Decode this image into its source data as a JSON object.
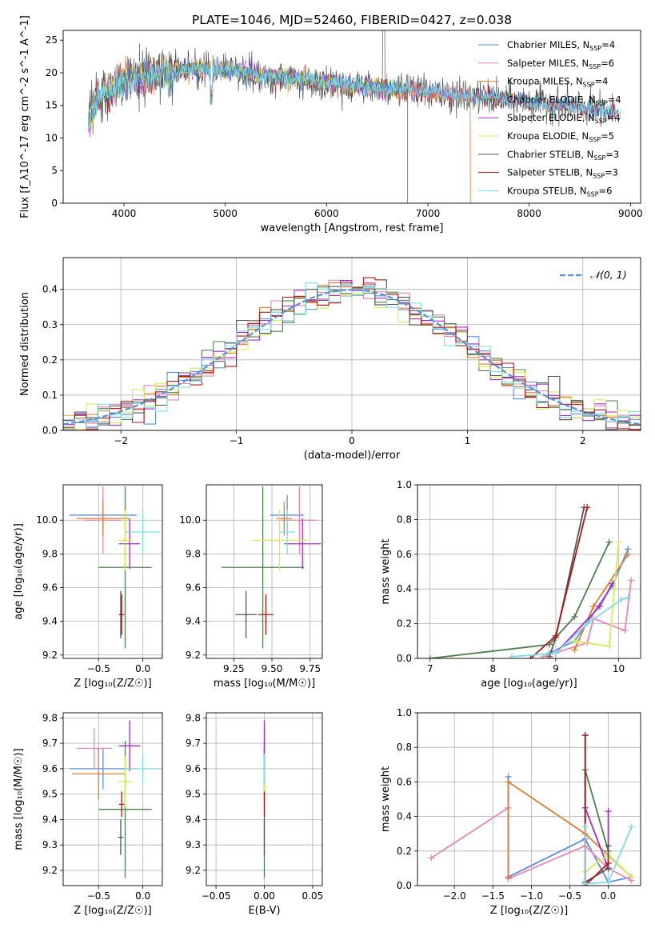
{
  "figure": {
    "title": "PLATE=1046, MJD=52460, FIBERID=0427, z=0.038"
  },
  "colors": {
    "chabrier_miles": "#5b8ee0",
    "salpeter_miles": "#e887b3",
    "kroupa_miles": "#e07b2a",
    "chabrier_elodie": "#4f7f4f",
    "salpeter_elodie": "#a52bc9",
    "kroupa_elodie": "#d4ec5a",
    "chabrier_stelib": "#555555",
    "salpeter_stelib": "#b01818",
    "kroupa_stelib": "#7fdde6",
    "normal": "#5a8fd8",
    "grid": "#b0b0b0"
  },
  "chart_data": [
    {
      "id": "spectrum",
      "type": "line",
      "xlabel": "wavelength [Angstrom, rest frame]",
      "ylabel": "Flux [f_λ10^-17 erg cm^-2 s^-1 A^-1]",
      "xlim": [
        3400,
        9100
      ],
      "ylim": [
        0,
        26.5
      ],
      "xticks": [
        4000,
        5000,
        6000,
        7000,
        8000,
        9000
      ],
      "yticks": [
        0,
        5,
        10,
        15,
        20,
        25
      ],
      "legend_position": "upper-right",
      "continuum": {
        "x": [
          3650,
          3700,
          3800,
          3900,
          4000,
          4100,
          4200,
          4400,
          4600,
          4800,
          5000,
          5200,
          5400,
          5600,
          5800,
          6000,
          6200,
          6400,
          6600,
          6800,
          7000,
          7200,
          7400,
          7600,
          7800,
          8000,
          8200,
          8400,
          8600,
          8800
        ],
        "y": [
          13,
          15,
          17,
          17.5,
          19,
          19.5,
          19,
          20,
          20.5,
          20.7,
          20.5,
          20,
          19.5,
          19.2,
          18.8,
          18.6,
          18.2,
          17.8,
          17.6,
          17.3,
          17,
          16.6,
          16.3,
          16.2,
          15.8,
          15.5,
          15.2,
          15.0,
          14.5,
          14.0
        ]
      },
      "series": [
        {
          "name": "Chabrier MILES",
          "nssp": 4,
          "x_end": 8900,
          "color_key": "chabrier_miles"
        },
        {
          "name": "Salpeter MILES",
          "nssp": 6,
          "x_end": 7420,
          "color_key": "salpeter_miles"
        },
        {
          "name": "Kroupa MILES",
          "nssp": 4,
          "x_end": 7420,
          "color_key": "kroupa_miles"
        },
        {
          "name": "Chabrier ELODIE",
          "nssp": 4,
          "x_end": 6800,
          "color_key": "chabrier_elodie"
        },
        {
          "name": "Salpeter ELODIE",
          "nssp": 4,
          "x_end": 6800,
          "color_key": "salpeter_elodie"
        },
        {
          "name": "Kroupa ELODIE",
          "nssp": 5,
          "x_end": 6800,
          "color_key": "kroupa_elodie"
        },
        {
          "name": "Chabrier STELIB",
          "nssp": 3,
          "x_end": 8850,
          "color_key": "chabrier_stelib"
        },
        {
          "name": "Salpeter STELIB",
          "nssp": 3,
          "x_end": 8850,
          "color_key": "salpeter_stelib"
        },
        {
          "name": "Kroupa STELIB",
          "nssp": 6,
          "x_end": 8850,
          "color_key": "kroupa_stelib"
        }
      ]
    },
    {
      "id": "residuals",
      "type": "histogram",
      "xlabel": "(data-model)/error",
      "ylabel": "Normed distribution",
      "xlim": [
        -2.5,
        2.5
      ],
      "ylim": [
        0,
        0.49
      ],
      "xticks": [
        -2,
        -1,
        0,
        1,
        2
      ],
      "yticks": [
        0.0,
        0.1,
        0.2,
        0.3,
        0.4
      ],
      "bin_width": 0.1,
      "legend": "𝒩(0, 1)",
      "legend_position": "upper-right"
    },
    {
      "id": "age_vs_z",
      "type": "errorbar",
      "xlabel": "Z [log₁₀(Z/Z☉)]",
      "ylabel": "age  [log₁₀(age/yr)]",
      "xlim": [
        -0.9,
        0.22
      ],
      "ylim": [
        9.18,
        10.21
      ],
      "xticks": [
        -0.5,
        0.0
      ],
      "yticks": [
        9.2,
        9.4,
        9.6,
        9.8,
        10.0
      ],
      "points": [
        {
          "x": -0.45,
          "y": 10.03,
          "xerr": 0.38,
          "yerr": 0.12,
          "color_key": "chabrier_miles"
        },
        {
          "x": -0.45,
          "y": 10.0,
          "xerr": 0.2,
          "yerr": 0.2,
          "color_key": "salpeter_miles"
        },
        {
          "x": -0.45,
          "y": 10.01,
          "xerr": 0.3,
          "yerr": 0.1,
          "color_key": "kroupa_miles"
        },
        {
          "x": -0.2,
          "y": 9.72,
          "xerr": 0.3,
          "yerr": 0.48,
          "color_key": "chabrier_elodie"
        },
        {
          "x": -0.15,
          "y": 9.86,
          "xerr": 0.12,
          "yerr": 0.15,
          "color_key": "salpeter_elodie"
        },
        {
          "x": -0.2,
          "y": 9.88,
          "xerr": 0.08,
          "yerr": 0.18,
          "color_key": "kroupa_elodie"
        },
        {
          "x": -0.25,
          "y": 9.44,
          "xerr": 0.02,
          "yerr": 0.14,
          "color_key": "chabrier_stelib"
        },
        {
          "x": -0.24,
          "y": 9.44,
          "xerr": 0.03,
          "yerr": 0.12,
          "color_key": "salpeter_stelib"
        },
        {
          "x": 0.0,
          "y": 9.93,
          "xerr": 0.2,
          "yerr": 0.13,
          "color_key": "kroupa_stelib"
        }
      ]
    },
    {
      "id": "age_vs_mass",
      "type": "errorbar",
      "xlabel": "mass [log₁₀(M/M☉)]",
      "ylabel": "",
      "xlim": [
        9.07,
        9.83
      ],
      "ylim": [
        9.18,
        10.21
      ],
      "xticks": [
        9.25,
        9.5,
        9.75
      ],
      "yticks": [
        9.2,
        9.4,
        9.6,
        9.8,
        10.0
      ],
      "points": [
        {
          "x": 9.6,
          "y": 10.03,
          "xerr": 0.11,
          "yerr": 0.12,
          "color_key": "chabrier_miles"
        },
        {
          "x": 9.68,
          "y": 10.0,
          "xerr": 0.12,
          "yerr": 0.2,
          "color_key": "salpeter_miles"
        },
        {
          "x": 9.58,
          "y": 10.01,
          "xerr": 0.05,
          "yerr": 0.1,
          "color_key": "kroupa_miles"
        },
        {
          "x": 9.44,
          "y": 9.72,
          "xerr": 0.27,
          "yerr": 0.48,
          "color_key": "chabrier_elodie"
        },
        {
          "x": 9.7,
          "y": 9.86,
          "xerr": 0.12,
          "yerr": 0.15,
          "color_key": "salpeter_elodie"
        },
        {
          "x": 9.55,
          "y": 9.88,
          "xerr": 0.18,
          "yerr": 0.18,
          "color_key": "kroupa_elodie"
        },
        {
          "x": 9.33,
          "y": 9.44,
          "xerr": 0.07,
          "yerr": 0.14,
          "color_key": "chabrier_stelib"
        },
        {
          "x": 9.46,
          "y": 9.44,
          "xerr": 0.05,
          "yerr": 0.12,
          "color_key": "salpeter_stelib"
        },
        {
          "x": 9.6,
          "y": 9.93,
          "xerr": 0.05,
          "yerr": 0.13,
          "color_key": "kroupa_stelib"
        }
      ]
    },
    {
      "id": "massweight_vs_age",
      "type": "line",
      "xlabel": "age  [log₁₀(age/yr)]",
      "ylabel": "mass weight",
      "xlim": [
        6.8,
        10.35
      ],
      "ylim": [
        0,
        1.0
      ],
      "xticks": [
        7,
        8,
        9,
        10
      ],
      "yticks": [
        0.0,
        0.2,
        0.4,
        0.6,
        0.8,
        1.0
      ],
      "series": [
        {
          "color_key": "chabrier_miles",
          "x": [
            8.9,
            9.3,
            9.9,
            10.15
          ],
          "y": [
            0.03,
            0.1,
            0.42,
            0.63
          ]
        },
        {
          "color_key": "salpeter_miles",
          "x": [
            8.8,
            9.5,
            9.6,
            10.1,
            10.2
          ],
          "y": [
            0.01,
            0.09,
            0.23,
            0.16,
            0.45
          ]
        },
        {
          "color_key": "kroupa_miles",
          "x": [
            9.3,
            9.6,
            10.15
          ],
          "y": [
            0.05,
            0.3,
            0.6
          ]
        },
        {
          "color_key": "chabrier_elodie",
          "x": [
            7.0,
            8.9,
            9.3,
            9.85
          ],
          "y": [
            0.0,
            0.08,
            0.24,
            0.67
          ]
        },
        {
          "color_key": "salpeter_elodie",
          "x": [
            9.0,
            9.7,
            9.9
          ],
          "y": [
            0.03,
            0.3,
            0.43
          ]
        },
        {
          "color_key": "kroupa_elodie",
          "x": [
            9.3,
            9.85,
            10.0
          ],
          "y": [
            0.1,
            0.07,
            0.67
          ]
        },
        {
          "color_key": "chabrier_stelib",
          "x": [
            8.9,
            9.0,
            9.45
          ],
          "y": [
            0.01,
            0.12,
            0.87
          ]
        },
        {
          "color_key": "salpeter_stelib",
          "x": [
            8.6,
            9.0,
            9.5
          ],
          "y": [
            0.0,
            0.13,
            0.87
          ]
        },
        {
          "color_key": "kroupa_stelib",
          "x": [
            8.3,
            9.0,
            9.5,
            10.05,
            10.15
          ],
          "y": [
            0.01,
            0.03,
            0.2,
            0.34,
            0.35
          ]
        }
      ]
    },
    {
      "id": "mass_vs_z",
      "type": "errorbar",
      "xlabel": "Z [log₁₀(Z/Z☉)]",
      "ylabel": "mass [log₁₀(M/M☉)]",
      "xlim": [
        -0.9,
        0.22
      ],
      "ylim": [
        9.14,
        9.82
      ],
      "xticks": [
        -0.5,
        0.0
      ],
      "yticks": [
        9.2,
        9.3,
        9.4,
        9.5,
        9.6,
        9.7,
        9.8
      ],
      "points": [
        {
          "x": -0.45,
          "y": 9.6,
          "xerr": 0.38,
          "yerr": 0.08,
          "color_key": "chabrier_miles"
        },
        {
          "x": -0.55,
          "y": 9.68,
          "xerr": 0.2,
          "yerr": 0.08,
          "color_key": "salpeter_miles"
        },
        {
          "x": -0.5,
          "y": 9.58,
          "xerr": 0.3,
          "yerr": 0.1,
          "color_key": "kroupa_miles"
        },
        {
          "x": -0.2,
          "y": 9.44,
          "xerr": 0.3,
          "yerr": 0.27,
          "color_key": "chabrier_elodie"
        },
        {
          "x": -0.15,
          "y": 9.69,
          "xerr": 0.12,
          "yerr": 0.1,
          "color_key": "salpeter_elodie"
        },
        {
          "x": -0.2,
          "y": 9.55,
          "xerr": 0.08,
          "yerr": 0.1,
          "color_key": "kroupa_elodie"
        },
        {
          "x": -0.25,
          "y": 9.33,
          "xerr": 0.03,
          "yerr": 0.07,
          "color_key": "chabrier_stelib"
        },
        {
          "x": -0.24,
          "y": 9.46,
          "xerr": 0.03,
          "yerr": 0.05,
          "color_key": "salpeter_stelib"
        },
        {
          "x": 0.0,
          "y": 9.6,
          "xerr": 0.2,
          "yerr": 0.06,
          "color_key": "kroupa_stelib"
        }
      ]
    },
    {
      "id": "mass_vs_ebv",
      "type": "errorbar",
      "xlabel": "E(B-V)",
      "ylabel": "",
      "xlim": [
        -0.06,
        0.06
      ],
      "ylim": [
        9.14,
        9.82
      ],
      "xticks": [
        -0.05,
        0.0,
        0.05
      ],
      "xticklabels": [
        "−0.05",
        "0.00",
        "0.05"
      ],
      "yticks": [
        9.2,
        9.3,
        9.4,
        9.5,
        9.6,
        9.7,
        9.8
      ],
      "points": [
        {
          "x": 0.0,
          "y": 9.6,
          "xerr": 0,
          "yerr": 0.08,
          "color_key": "chabrier_miles"
        },
        {
          "x": 0.0,
          "y": 9.68,
          "xerr": 0,
          "yerr": 0.08,
          "color_key": "salpeter_miles"
        },
        {
          "x": 0.0,
          "y": 9.58,
          "xerr": 0,
          "yerr": 0.1,
          "color_key": "kroupa_miles"
        },
        {
          "x": 0.0,
          "y": 9.44,
          "xerr": 0,
          "yerr": 0.27,
          "color_key": "chabrier_elodie"
        },
        {
          "x": 0.0,
          "y": 9.69,
          "xerr": 0,
          "yerr": 0.1,
          "color_key": "salpeter_elodie"
        },
        {
          "x": 0.0,
          "y": 9.55,
          "xerr": 0,
          "yerr": 0.1,
          "color_key": "kroupa_elodie"
        },
        {
          "x": 0.0,
          "y": 9.33,
          "xerr": 0,
          "yerr": 0.07,
          "color_key": "chabrier_stelib"
        },
        {
          "x": 0.0,
          "y": 9.46,
          "xerr": 0,
          "yerr": 0.05,
          "color_key": "salpeter_stelib"
        },
        {
          "x": 0.0,
          "y": 9.6,
          "xerr": 0,
          "yerr": 0.06,
          "color_key": "kroupa_stelib"
        }
      ]
    },
    {
      "id": "massweight_vs_z",
      "type": "line",
      "xlabel": "Z [log₁₀(Z/Z☉)]",
      "ylabel": "mass weight",
      "xlim": [
        -2.48,
        0.42
      ],
      "ylim": [
        0,
        1.0
      ],
      "xticks": [
        -2.0,
        -1.5,
        -1.0,
        -0.5,
        0.0
      ],
      "xticklabels": [
        "−2.0",
        "−1.5",
        "−1.0",
        "−0.5",
        "0.0"
      ],
      "yticks": [
        0.0,
        0.2,
        0.4,
        0.6,
        0.8,
        1.0
      ],
      "series": [
        {
          "color_key": "chabrier_miles",
          "x": [
            -1.3,
            -1.3,
            -0.3,
            0.0,
            0.3
          ],
          "y": [
            0.63,
            0.05,
            0.27,
            0.02,
            0.05
          ]
        },
        {
          "color_key": "salpeter_miles",
          "x": [
            -2.3,
            -1.3,
            -1.3,
            -0.3,
            0.0,
            0.3
          ],
          "y": [
            0.16,
            0.45,
            0.04,
            0.23,
            0.1,
            0.03
          ]
        },
        {
          "color_key": "kroupa_miles",
          "x": [
            -1.3,
            -1.3,
            -0.3,
            0.3
          ],
          "y": [
            0.05,
            0.6,
            0.3,
            0.05
          ]
        },
        {
          "color_key": "chabrier_elodie",
          "x": [
            -0.3,
            -0.3,
            0.0
          ],
          "y": [
            0.0,
            0.67,
            0.2
          ]
        },
        {
          "color_key": "salpeter_elodie",
          "x": [
            -0.3,
            0.0,
            0.0
          ],
          "y": [
            0.45,
            0.1,
            0.43
          ]
        },
        {
          "color_key": "kroupa_elodie",
          "x": [
            -0.3,
            0.0,
            0.3
          ],
          "y": [
            0.08,
            0.18,
            0.05
          ]
        },
        {
          "color_key": "chabrier_stelib",
          "x": [
            -0.3,
            -0.3,
            0.0,
            0.0
          ],
          "y": [
            0.87,
            0.02,
            0.1,
            0.23
          ]
        },
        {
          "color_key": "salpeter_stelib",
          "x": [
            -0.3,
            -0.3,
            0.0
          ],
          "y": [
            0.87,
            0.0,
            0.13
          ]
        },
        {
          "color_key": "kroupa_stelib",
          "x": [
            -0.3,
            -0.3,
            0.0,
            0.3
          ],
          "y": [
            0.34,
            0.01,
            0.02,
            0.34
          ]
        }
      ]
    }
  ]
}
